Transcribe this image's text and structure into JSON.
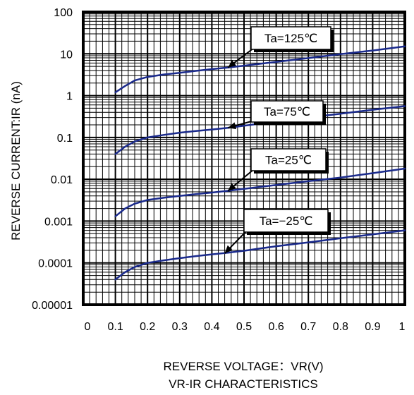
{
  "chart_data": {
    "type": "line",
    "title": "VR-IR CHARACTERISTICS",
    "xlabel": "REVERSE VOLTAGE：VR(V)",
    "ylabel": "REVERSE CURRENT:IR (nA)",
    "x_scale": "linear",
    "y_scale": "log",
    "xlim": [
      0,
      1
    ],
    "ylim": [
      1e-05,
      100
    ],
    "x_ticks": [
      "0",
      "0.1",
      "0.2",
      "0.3",
      "0.4",
      "0.5",
      "0.6",
      "0.7",
      "0.8",
      "0.9",
      "1"
    ],
    "y_ticks": [
      "100",
      "10",
      "1",
      "0.1",
      "0.01",
      "0.001",
      "0.0001",
      "0.00001"
    ],
    "grid": true,
    "line_color": "#1a2a8c",
    "series": [
      {
        "name": "Ta=125℃",
        "x": [
          0.1,
          0.13,
          0.16,
          0.2,
          0.25,
          0.3,
          0.35,
          0.4,
          0.45,
          0.5,
          0.6,
          0.7,
          0.8,
          0.9,
          1.0
        ],
        "y": [
          1.2,
          1.7,
          2.3,
          2.8,
          3.2,
          3.5,
          3.9,
          4.3,
          4.7,
          5.2,
          6.4,
          7.9,
          9.8,
          12,
          15
        ]
      },
      {
        "name": "Ta=75℃",
        "x": [
          0.1,
          0.13,
          0.16,
          0.2,
          0.25,
          0.3,
          0.35,
          0.4,
          0.45,
          0.5,
          0.6,
          0.7,
          0.8,
          0.9,
          1.0
        ],
        "y": [
          0.04,
          0.06,
          0.08,
          0.1,
          0.115,
          0.13,
          0.142,
          0.155,
          0.17,
          0.19,
          0.24,
          0.3,
          0.37,
          0.46,
          0.56
        ]
      },
      {
        "name": "Ta=25℃",
        "x": [
          0.1,
          0.13,
          0.16,
          0.2,
          0.25,
          0.3,
          0.35,
          0.4,
          0.45,
          0.5,
          0.6,
          0.7,
          0.8,
          0.9,
          1.0
        ],
        "y": [
          0.0013,
          0.002,
          0.0026,
          0.0032,
          0.0036,
          0.004,
          0.0044,
          0.0048,
          0.0053,
          0.0059,
          0.0073,
          0.009,
          0.011,
          0.014,
          0.018
        ]
      },
      {
        "name": "Ta=−25℃",
        "x": [
          0.1,
          0.13,
          0.16,
          0.2,
          0.25,
          0.3,
          0.35,
          0.4,
          0.45,
          0.5,
          0.6,
          0.7,
          0.8,
          0.9,
          1.0
        ],
        "y": [
          4e-05,
          6e-05,
          8e-05,
          0.0001,
          0.000115,
          0.00013,
          0.000145,
          0.00016,
          0.000175,
          0.000195,
          0.00025,
          0.00031,
          0.00039,
          0.00048,
          0.0006
        ]
      }
    ],
    "annotations": [
      {
        "label": "Ta=125℃",
        "target_x": 0.45,
        "target_y": 4.7
      },
      {
        "label": "Ta=75℃",
        "target_x": 0.45,
        "target_y": 0.17
      },
      {
        "label": "Ta=25℃",
        "target_x": 0.45,
        "target_y": 0.0053
      },
      {
        "label": "Ta=−25℃",
        "target_x": 0.44,
        "target_y": 0.00017
      }
    ]
  }
}
